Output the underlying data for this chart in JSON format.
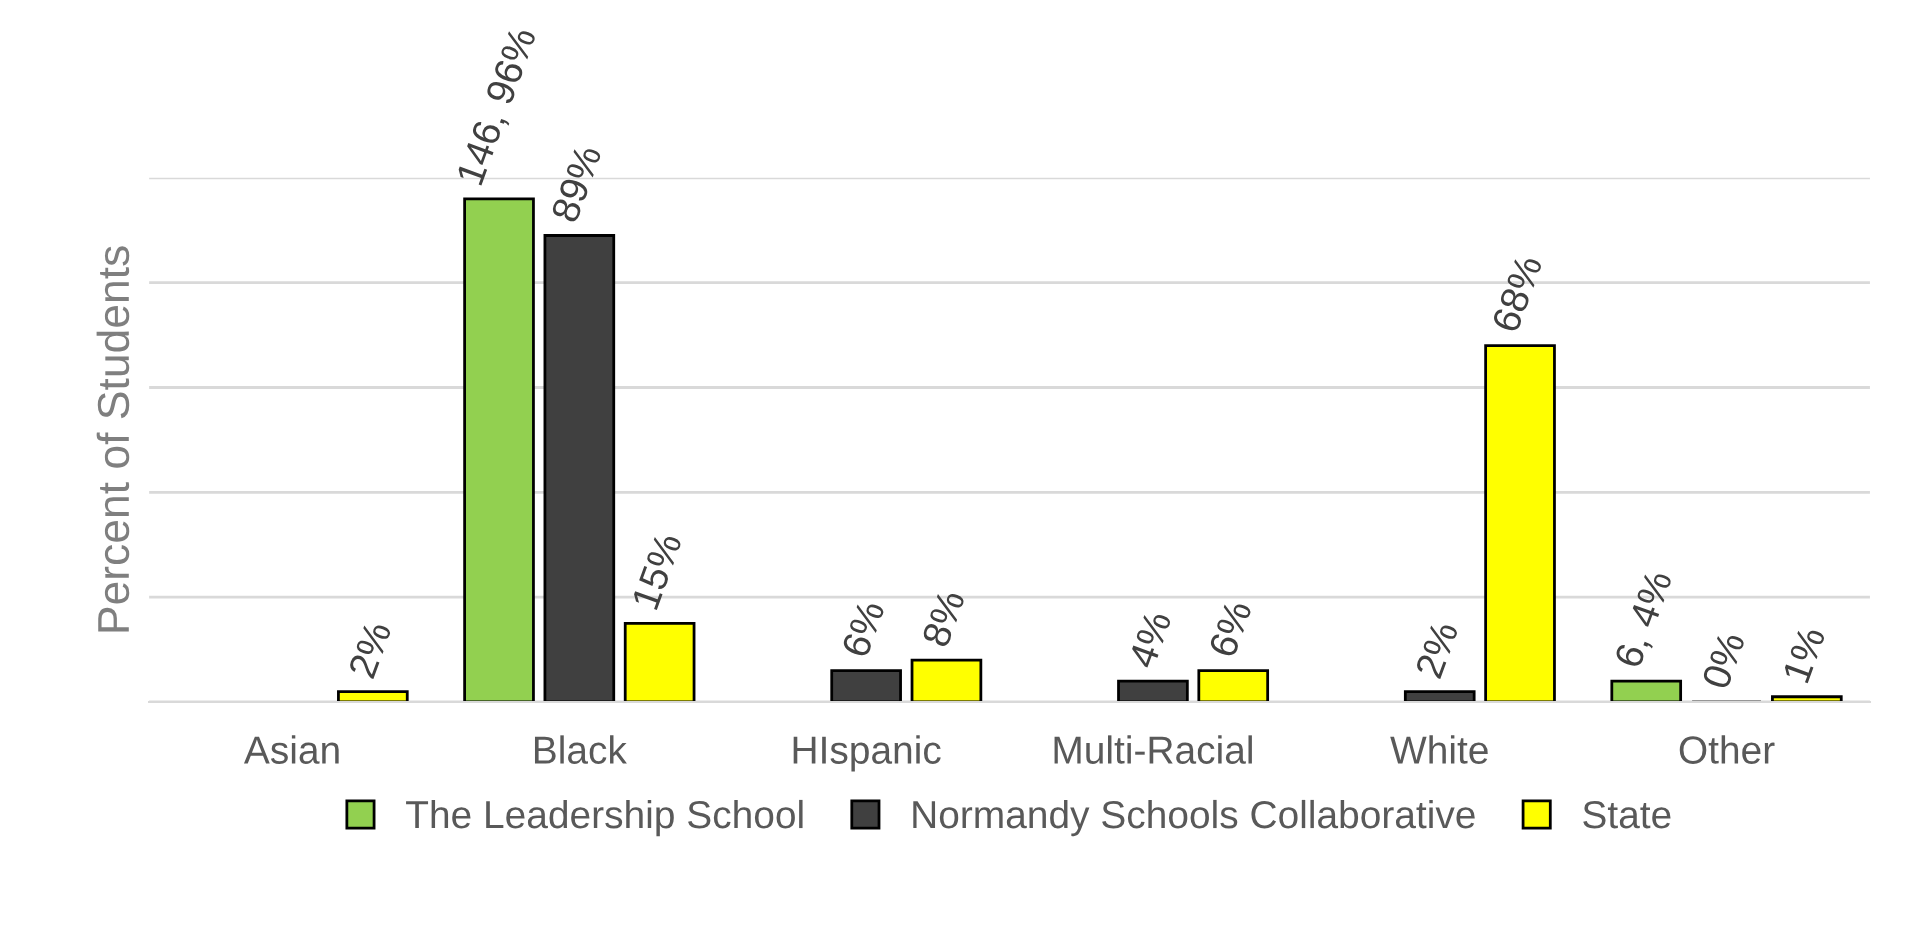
{
  "chart_data": {
    "type": "bar",
    "ylabel": "Percent of Students",
    "categories": [
      "Asian",
      "Black",
      "HIspanic",
      "Multi-Racial",
      "White",
      "Other"
    ],
    "series": [
      {
        "name": "The Leadership School",
        "color": "#92d050",
        "values": [
          null,
          96,
          null,
          null,
          null,
          4
        ],
        "value_labels": [
          null,
          "146, 96%",
          null,
          null,
          null,
          "6, 4%"
        ]
      },
      {
        "name": "Normandy Schools Collaborative",
        "color": "#404040",
        "values": [
          null,
          89,
          6,
          4,
          2,
          0
        ],
        "value_labels": [
          null,
          "89%",
          "6%",
          "4%",
          "2%",
          "0%"
        ]
      },
      {
        "name": "State",
        "color": "#ffff00",
        "values": [
          2,
          15,
          8,
          6,
          68,
          1
        ],
        "value_labels": [
          "2%",
          "15%",
          "8%",
          "6%",
          "68%",
          "1%"
        ]
      }
    ],
    "ylim": [
      0,
      100
    ],
    "yticks": [
      {
        "value": 0,
        "label": null
      },
      {
        "value": 20,
        "label": null
      },
      {
        "value": 40,
        "label": null
      },
      {
        "value": 60,
        "label": null
      },
      {
        "value": 80,
        "label": null
      },
      {
        "value": 100,
        "label": null
      }
    ],
    "grid": "y",
    "legend": "bottom",
    "tick_labels": "x"
  }
}
